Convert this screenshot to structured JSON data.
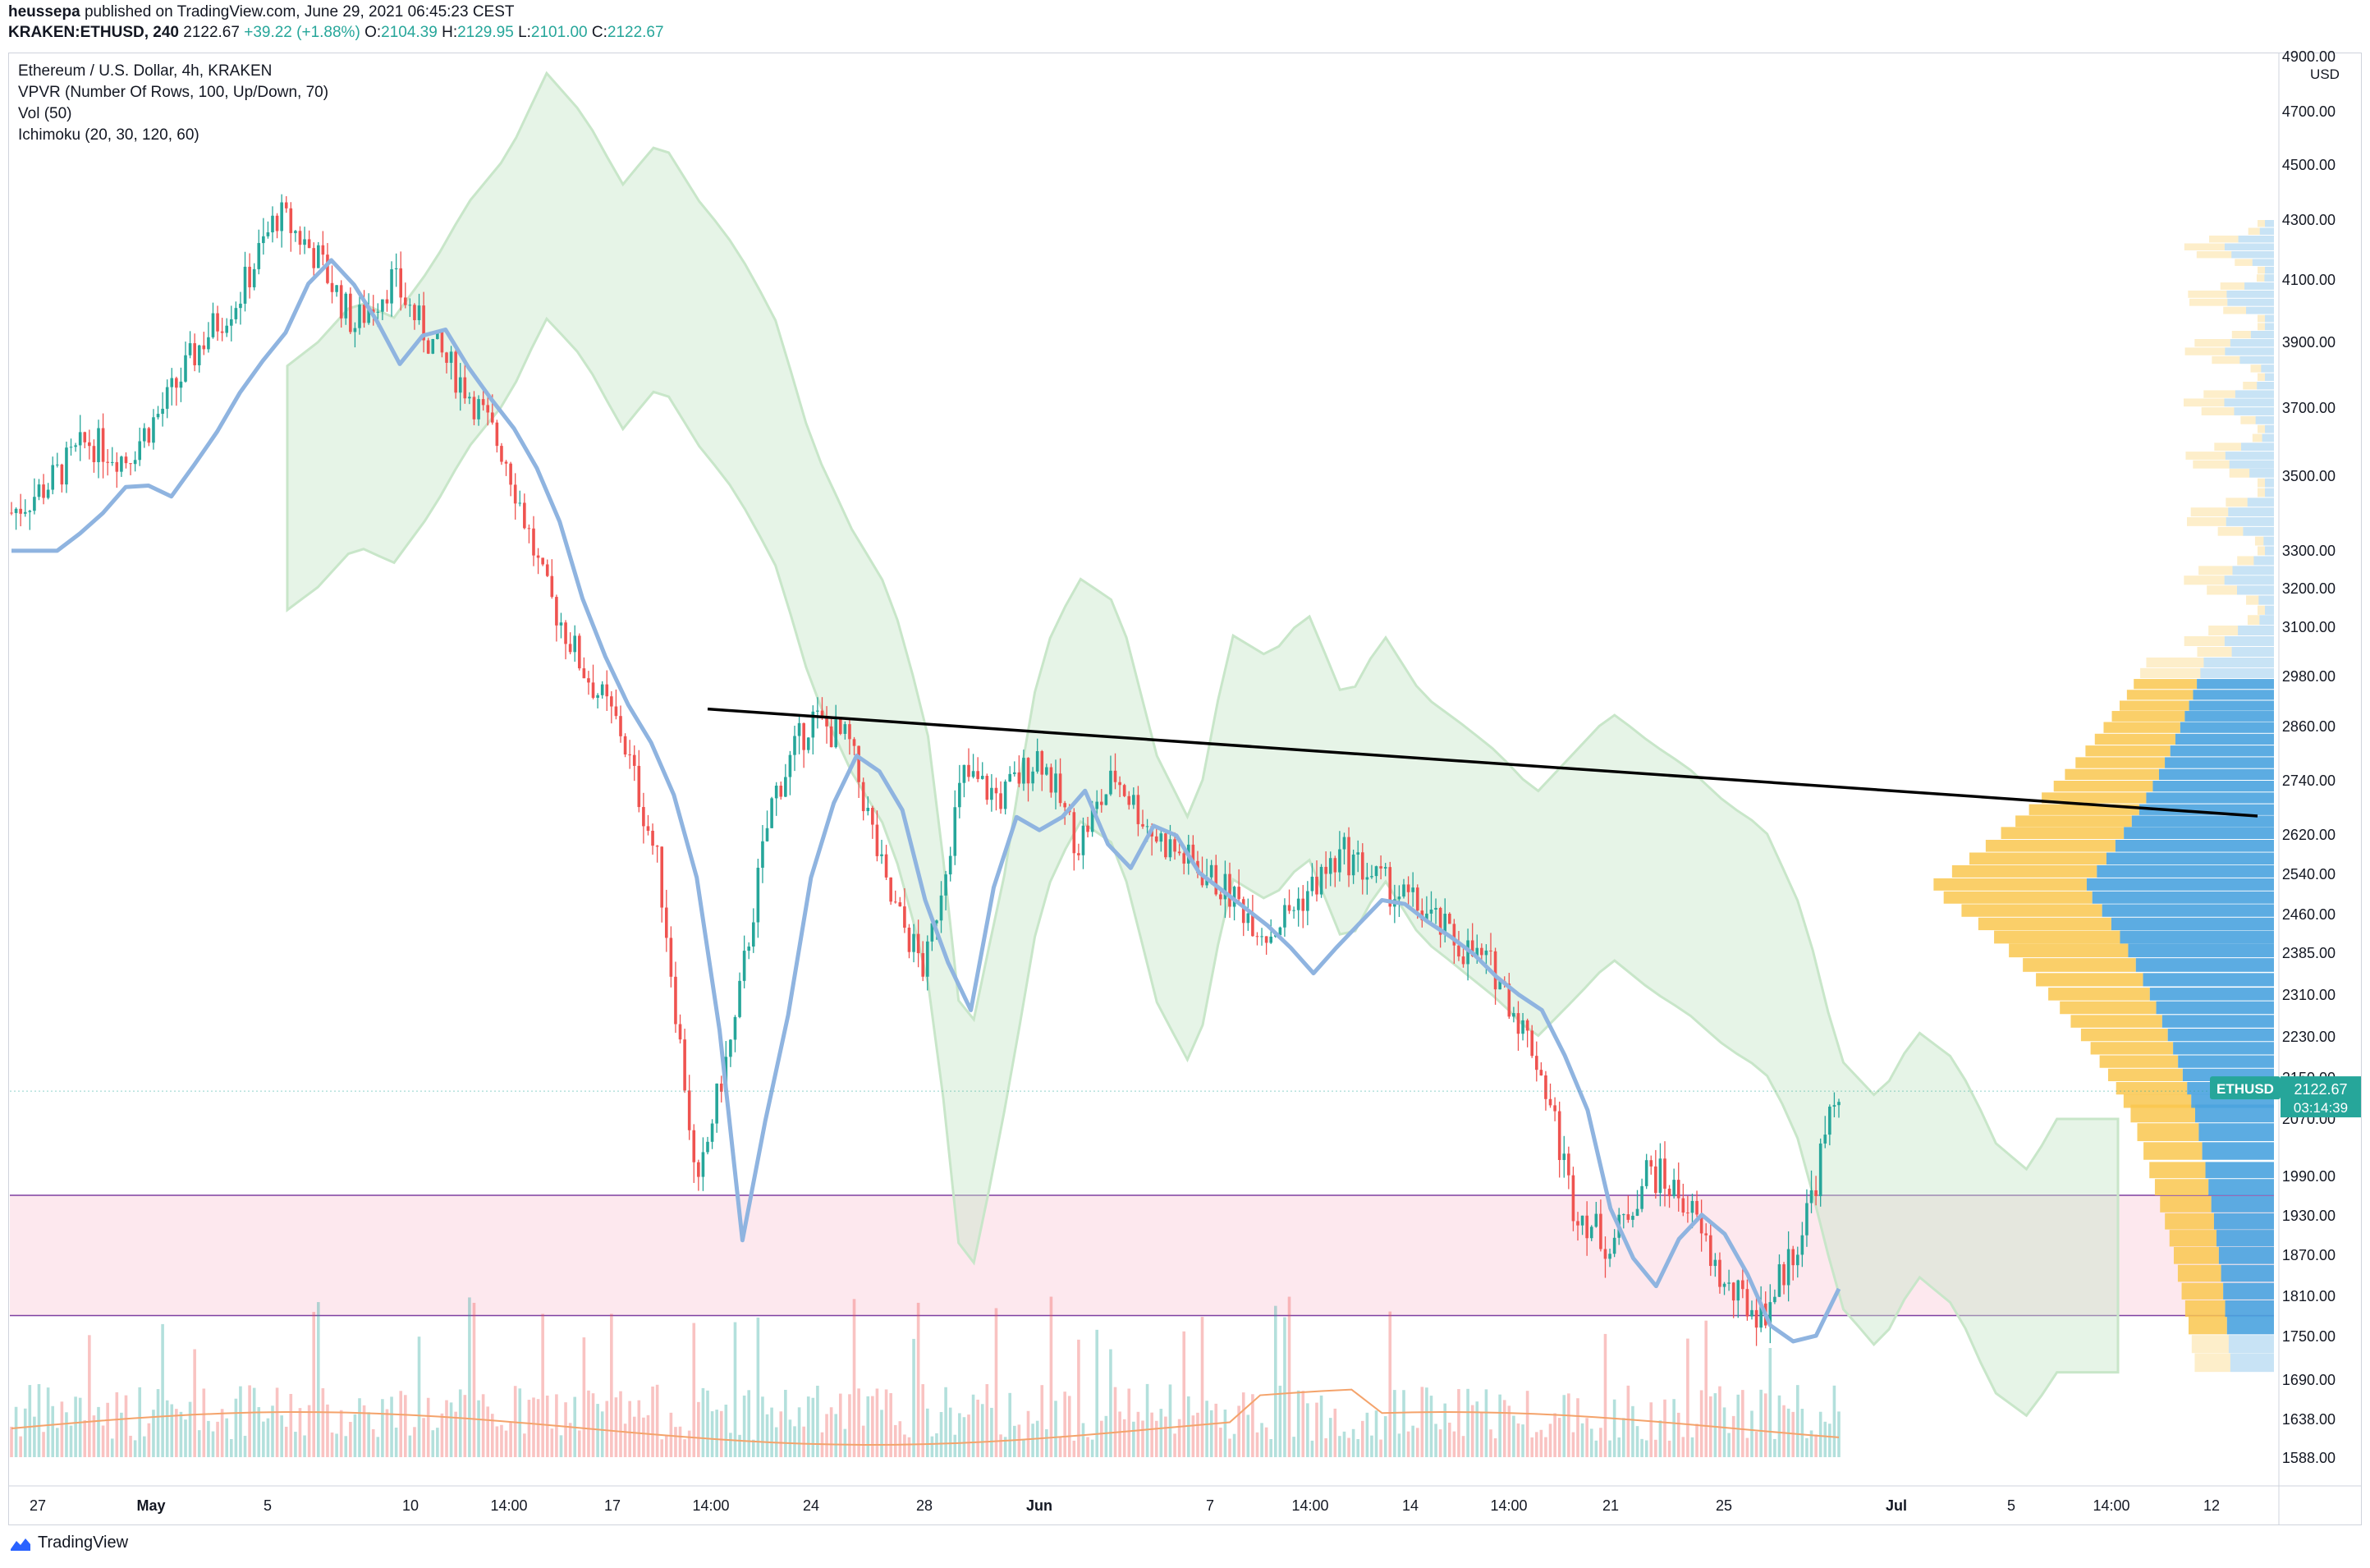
{
  "header": {
    "publisher": "heussepa",
    "published_text": "published on TradingView.com, June 29, 2021 06:45:23 CEST",
    "symbol": "KRAKEN:ETHUSD, 240",
    "last": "2122.67",
    "change": "+39.22 (+1.88%)",
    "o_label": "O:",
    "o": "2104.39",
    "h_label": "H:",
    "h": "2129.95",
    "l_label": "L:",
    "l": "2101.00",
    "c_label": "C:",
    "c": "2122.67"
  },
  "legend": {
    "title": "Ethereum / U.S. Dollar, 4h, KRAKEN",
    "line1": "VPVR (Number Of Rows, 100, Up/Down, 70)",
    "line2": "Vol (50)",
    "line3": "Ichimoku (20, 30, 120, 60)"
  },
  "price_tag": {
    "symbol": "ETHUSD",
    "price": "2122.67",
    "countdown": "03:14:39"
  },
  "currency": "USD",
  "branding": "TradingView",
  "colors": {
    "up": "#26a69a",
    "down": "#ef5350",
    "kijun": "#8fb4e0",
    "cloud_green": "#c8e6c9",
    "cloud_red": "#ffcdd2",
    "vp_up": "#f9c74f",
    "vp_down": "#4aa3df",
    "zone": "#fde8ee",
    "zone_line": "#7e3fa0",
    "trend": "#000000",
    "vol_ma": "#f4a36b"
  },
  "chart_data": {
    "type": "candlestick",
    "title": "Ethereum / U.S. Dollar, 4h, KRAKEN",
    "y_axis_ticks": [
      "4900.00",
      "4700.00",
      "4500.00",
      "4300.00",
      "4100.00",
      "3900.00",
      "3700.00",
      "3500.00",
      "3300.00",
      "3200.00",
      "3100.00",
      "2980.00",
      "2860.00",
      "2740.00",
      "2620.00",
      "2540.00",
      "2460.00",
      "2385.00",
      "2310.00",
      "2230.00",
      "2150.00",
      "2070.00",
      "1990.00",
      "1930.00",
      "1870.00",
      "1810.00",
      "1750.00",
      "1690.00",
      "1638.00",
      "1588.00"
    ],
    "x_axis_ticks": [
      "27",
      "May",
      "5",
      "10",
      "14:00",
      "17",
      "14:00",
      "24",
      "28",
      "Jun",
      "7",
      "14:00",
      "14",
      "14:00",
      "21",
      "25",
      "Jul",
      "5",
      "14:00",
      "12"
    ],
    "x_axis_ticks_bold": [
      "May",
      "Jun",
      "Jul"
    ],
    "close_path": [
      3400,
      3480,
      3600,
      3550,
      3700,
      3900,
      4050,
      4320,
      4180,
      3950,
      4100,
      3900,
      3750,
      3550,
      3200,
      3000,
      2850,
      2550,
      1950,
      2250,
      2700,
      2880,
      2820,
      2500,
      2350,
      2750,
      2700,
      2800,
      2600,
      2750,
      2620,
      2560,
      2500,
      2420,
      2500,
      2580,
      2520,
      2470,
      2400,
      2350,
      2200,
      1950,
      1880,
      2000,
      1950,
      1820,
      1780,
      1900,
      2120
    ],
    "support_zone": [
      1780,
      1960
    ],
    "trendline": {
      "from": 2900,
      "to": 2660
    },
    "last_price": 2122.67
  }
}
